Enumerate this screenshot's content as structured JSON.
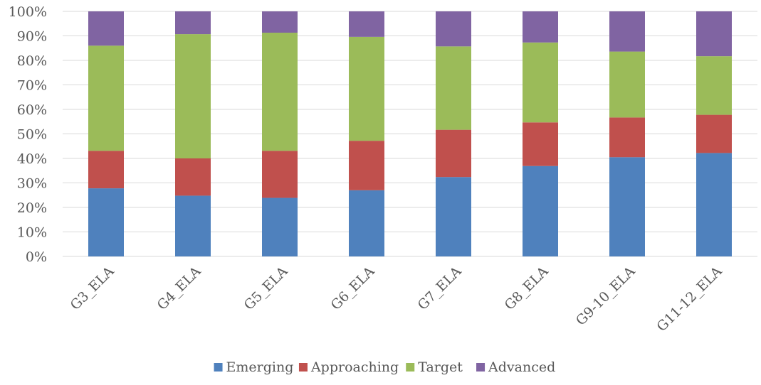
{
  "chart_data": {
    "type": "bar",
    "stacked": true,
    "normalized_percent": true,
    "title": "",
    "xlabel": "",
    "ylabel": "",
    "ylim": [
      0,
      100
    ],
    "y_ticks": [
      "0%",
      "10%",
      "20%",
      "30%",
      "40%",
      "50%",
      "60%",
      "70%",
      "80%",
      "90%",
      "100%"
    ],
    "grid": true,
    "legend_position": "bottom",
    "categories": [
      "G3_ELA",
      "G4_ELA",
      "G5_ELA",
      "G6_ELA",
      "G7_ELA",
      "G8_ELA",
      "G9-10_ELA",
      "G11-12_ELA"
    ],
    "series": [
      {
        "name": "Emerging",
        "color": "#4F81BD",
        "values": [
          27.8,
          24.8,
          23.9,
          27.0,
          32.4,
          36.9,
          40.5,
          42.2
        ]
      },
      {
        "name": "Approaching",
        "color": "#C0504D",
        "values": [
          15.3,
          15.2,
          19.2,
          20.2,
          19.3,
          17.8,
          16.2,
          15.6
        ]
      },
      {
        "name": "Target",
        "color": "#9BBB59",
        "values": [
          42.9,
          50.7,
          48.2,
          42.4,
          34.0,
          32.6,
          26.9,
          23.9
        ]
      },
      {
        "name": "Advanced",
        "color": "#8064A2",
        "values": [
          14.0,
          9.3,
          8.7,
          10.4,
          14.3,
          12.7,
          16.4,
          18.3
        ]
      }
    ]
  },
  "colors": {
    "gridline": "#D9D9D9",
    "text": "#595959"
  }
}
